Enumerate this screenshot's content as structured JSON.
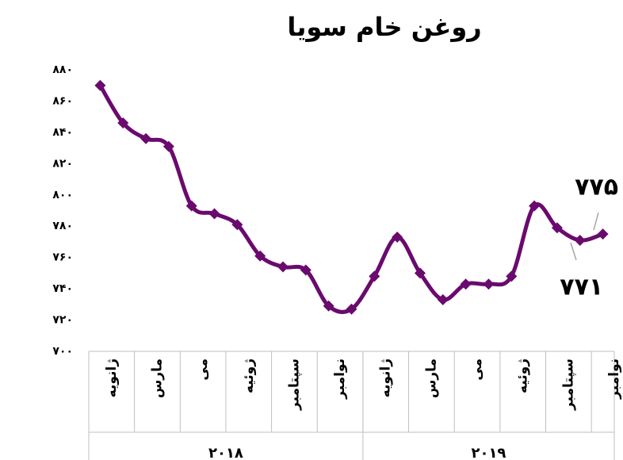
{
  "chart_data": {
    "type": "line",
    "title": "روغن خام سویا",
    "categories": [
      "ژانویه",
      null,
      "مارس",
      null,
      "می",
      null,
      "ژوئیه",
      null,
      "سپتامبر",
      null,
      "نوامبر",
      null,
      "ژانویه",
      null,
      "مارس",
      null,
      "می",
      null,
      "ژوئیه",
      null,
      "سپتامبر",
      null,
      "نوامبر"
    ],
    "groups": [
      {
        "label": "۲۰۱۸",
        "count": 12
      },
      {
        "label": "۲۰۱۹",
        "count": 11
      }
    ],
    "series": [
      {
        "name": "روغن خام سویا",
        "color": "#6a0a6e",
        "values": [
          870,
          846,
          836,
          831,
          793,
          788,
          781,
          761,
          754,
          752,
          729,
          727,
          748,
          773,
          750,
          733,
          743,
          743,
          748,
          793,
          779,
          771,
          775
        ],
        "value_labels": [
          null,
          null,
          null,
          null,
          null,
          null,
          null,
          null,
          null,
          null,
          null,
          null,
          null,
          null,
          null,
          null,
          null,
          null,
          null,
          null,
          null,
          "۷۷۱",
          "۷۷۵"
        ]
      }
    ],
    "ylim": [
      700,
      880
    ],
    "yticks": [
      {
        "value": 700,
        "label": "۷۰۰"
      },
      {
        "value": 720,
        "label": "۷۲۰"
      },
      {
        "value": 740,
        "label": "۷۴۰"
      },
      {
        "value": 760,
        "label": "۷۶۰"
      },
      {
        "value": 780,
        "label": "۷۸۰"
      },
      {
        "value": 800,
        "label": "۸۰۰"
      },
      {
        "value": 820,
        "label": "۸۲۰"
      },
      {
        "value": 840,
        "label": "۸۴۰"
      },
      {
        "value": 860,
        "label": "۸۶۰"
      },
      {
        "value": 880,
        "label": "۸۸۰"
      }
    ],
    "grid": false
  }
}
